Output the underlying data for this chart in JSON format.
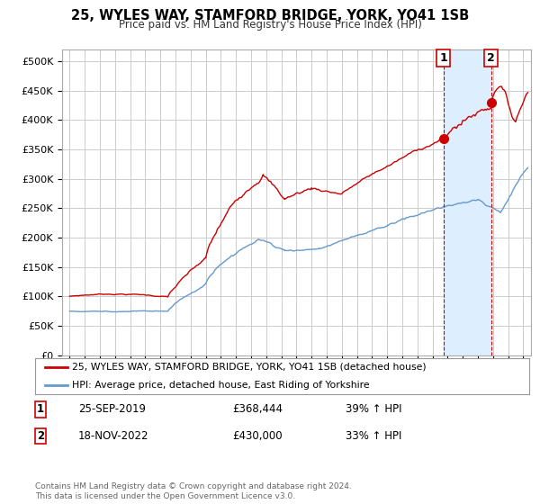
{
  "title": "25, WYLES WAY, STAMFORD BRIDGE, YORK, YO41 1SB",
  "subtitle": "Price paid vs. HM Land Registry's House Price Index (HPI)",
  "ylabel_ticks": [
    "£0",
    "£50K",
    "£100K",
    "£150K",
    "£200K",
    "£250K",
    "£300K",
    "£350K",
    "£400K",
    "£450K",
    "£500K"
  ],
  "ytick_values": [
    0,
    50000,
    100000,
    150000,
    200000,
    250000,
    300000,
    350000,
    400000,
    450000,
    500000
  ],
  "ylim": [
    0,
    520000
  ],
  "xlim_start": 1994.5,
  "xlim_end": 2025.5,
  "red_line_color": "#cc0000",
  "blue_line_color": "#6699cc",
  "blue_shade_color": "#ddeeff",
  "marker1_x": 2019.73,
  "marker1_y": 368444,
  "marker2_x": 2022.88,
  "marker2_y": 430000,
  "transaction1_date": "25-SEP-2019",
  "transaction1_price": "£368,444",
  "transaction1_hpi": "39% ↑ HPI",
  "transaction2_date": "18-NOV-2022",
  "transaction2_price": "£430,000",
  "transaction2_hpi": "33% ↑ HPI",
  "legend_label1": "25, WYLES WAY, STAMFORD BRIDGE, YORK, YO41 1SB (detached house)",
  "legend_label2": "HPI: Average price, detached house, East Riding of Yorkshire",
  "footer": "Contains HM Land Registry data © Crown copyright and database right 2024.\nThis data is licensed under the Open Government Licence v3.0.",
  "background_color": "#ffffff",
  "grid_color": "#cccccc"
}
